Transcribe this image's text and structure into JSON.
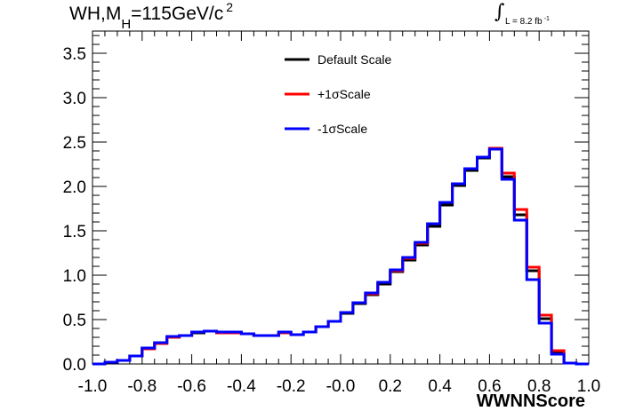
{
  "title": {
    "pre": "WH,M",
    "sub": "H",
    "mid": "=115GeV/c",
    "sup": "2"
  },
  "lumi": {
    "symbol": "∫",
    "text": "L = 8.2 fb",
    "sup": "-1"
  },
  "chart_data": {
    "type": "line",
    "step": true,
    "xlabel": "WWNNScore",
    "ylabel": "",
    "xlim": [
      -1.0,
      1.0
    ],
    "ylim": [
      0.0,
      3.75
    ],
    "xticks": [
      "-1.0",
      "-0.8",
      "-0.6",
      "-0.4",
      "-0.2",
      "-0.0",
      "0.2",
      "0.4",
      "0.6",
      "0.8",
      "1.0"
    ],
    "yticks": [
      "0.0",
      "0.5",
      "1.0",
      "1.5",
      "2.0",
      "2.5",
      "3.0",
      "3.5"
    ],
    "bin_edges": [
      -1.0,
      -0.95,
      -0.9,
      -0.85,
      -0.8,
      -0.75,
      -0.7,
      -0.65,
      -0.6,
      -0.55,
      -0.5,
      -0.45,
      -0.4,
      -0.35,
      -0.3,
      -0.25,
      -0.2,
      -0.15,
      -0.1,
      -0.05,
      0.0,
      0.05,
      0.1,
      0.15,
      0.2,
      0.25,
      0.3,
      0.35,
      0.4,
      0.45,
      0.5,
      0.55,
      0.6,
      0.65,
      0.7,
      0.75,
      0.8,
      0.85,
      0.9,
      0.95,
      1.0
    ],
    "legend_position": "top-center",
    "series": [
      {
        "name": "Default Scale",
        "color": "#000000",
        "values": [
          0.0,
          0.02,
          0.04,
          0.09,
          0.18,
          0.24,
          0.3,
          0.32,
          0.35,
          0.37,
          0.35,
          0.35,
          0.34,
          0.32,
          0.32,
          0.35,
          0.33,
          0.36,
          0.42,
          0.48,
          0.57,
          0.68,
          0.78,
          0.9,
          1.04,
          1.17,
          1.34,
          1.55,
          1.79,
          2.01,
          2.18,
          2.32,
          2.42,
          2.11,
          1.68,
          1.05,
          0.51,
          0.13,
          0.01,
          0.0
        ]
      },
      {
        "name": "+1σScale",
        "color": "#ff0000",
        "values": [
          0.0,
          0.02,
          0.04,
          0.09,
          0.17,
          0.23,
          0.3,
          0.32,
          0.36,
          0.37,
          0.35,
          0.35,
          0.34,
          0.32,
          0.32,
          0.35,
          0.33,
          0.36,
          0.42,
          0.48,
          0.58,
          0.69,
          0.79,
          0.92,
          1.05,
          1.19,
          1.36,
          1.58,
          1.82,
          2.03,
          2.2,
          2.33,
          2.43,
          2.15,
          1.74,
          1.09,
          0.55,
          0.15,
          0.01,
          0.0
        ]
      },
      {
        "name": "-1σScale",
        "color": "#0000ff",
        "values": [
          0.0,
          0.02,
          0.04,
          0.09,
          0.18,
          0.24,
          0.31,
          0.32,
          0.36,
          0.37,
          0.36,
          0.36,
          0.34,
          0.32,
          0.32,
          0.36,
          0.33,
          0.36,
          0.42,
          0.48,
          0.58,
          0.69,
          0.8,
          0.92,
          1.06,
          1.2,
          1.37,
          1.58,
          1.82,
          2.03,
          2.2,
          2.33,
          2.42,
          2.08,
          1.62,
          0.95,
          0.46,
          0.11,
          0.01,
          0.0
        ]
      }
    ]
  }
}
